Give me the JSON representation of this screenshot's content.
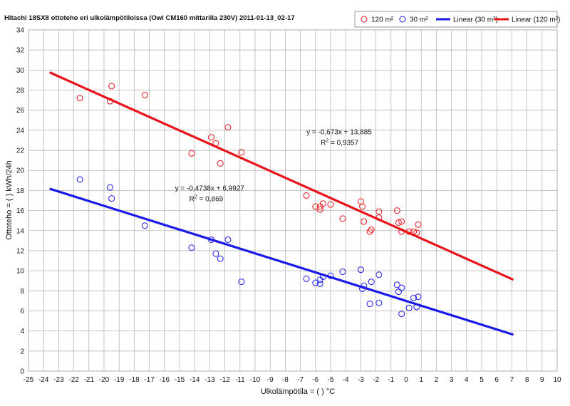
{
  "chart_data": {
    "type": "scatter",
    "title": "Hitachi 18SX8 ottoteho eri ulkolämpötiloissa (Owl CM160 mittarilla 230V) 2011-01-13_02-17",
    "xlabel": "Ulkolämpötila = ( ) °C",
    "ylabel": "Ottoteho = ( ) kWh/24h",
    "xlim": [
      -25,
      10
    ],
    "ylim": [
      0,
      34
    ],
    "x_ticks": [
      -25,
      -24,
      -23,
      -22,
      -21,
      -20,
      -19,
      -18,
      -17,
      -16,
      -15,
      -14,
      -13,
      -12,
      -11,
      -10,
      -9,
      -8,
      -7,
      -6,
      -5,
      -4,
      -3,
      -2,
      -1,
      0,
      1,
      2,
      3,
      4,
      5,
      6,
      7,
      8,
      9,
      10
    ],
    "y_ticks": [
      0,
      2,
      4,
      6,
      8,
      10,
      12,
      14,
      16,
      18,
      20,
      22,
      24,
      26,
      28,
      30,
      32,
      34
    ],
    "grid": true,
    "legend_position": "top-right",
    "series": [
      {
        "name": "120 m²",
        "marker": "circle-open",
        "color": "#e8141a",
        "points": [
          [
            -21.6,
            27.2
          ],
          [
            -19.6,
            26.9
          ],
          [
            -19.5,
            28.4
          ],
          [
            -17.3,
            27.5
          ],
          [
            -14.2,
            21.7
          ],
          [
            -12.9,
            23.3
          ],
          [
            -12.6,
            22.7
          ],
          [
            -12.3,
            20.7
          ],
          [
            -11.8,
            24.3
          ],
          [
            -10.9,
            21.8
          ],
          [
            -6.6,
            17.5
          ],
          [
            -6.0,
            16.4
          ],
          [
            -5.7,
            16.4
          ],
          [
            -5.7,
            16.1
          ],
          [
            -5.5,
            16.7
          ],
          [
            -5.0,
            16.6
          ],
          [
            -4.2,
            15.2
          ],
          [
            -3.0,
            16.9
          ],
          [
            -2.9,
            16.4
          ],
          [
            -2.8,
            14.9
          ],
          [
            -2.4,
            13.9
          ],
          [
            -2.3,
            14.1
          ],
          [
            -1.8,
            15.9
          ],
          [
            -1.8,
            15.3
          ],
          [
            -0.6,
            16.0
          ],
          [
            -0.5,
            14.8
          ],
          [
            -0.3,
            14.9
          ],
          [
            -0.3,
            13.9
          ],
          [
            0.2,
            13.9
          ],
          [
            0.5,
            13.9
          ],
          [
            0.7,
            13.8
          ],
          [
            0.8,
            14.6
          ]
        ]
      },
      {
        "name": "30 m²",
        "marker": "circle-open",
        "color": "#1a1ae8",
        "points": [
          [
            -21.6,
            19.1
          ],
          [
            -19.6,
            18.3
          ],
          [
            -19.5,
            17.2
          ],
          [
            -17.3,
            14.5
          ],
          [
            -14.2,
            12.3
          ],
          [
            -12.9,
            13.1
          ],
          [
            -12.6,
            11.7
          ],
          [
            -12.3,
            11.2
          ],
          [
            -11.8,
            13.1
          ],
          [
            -10.9,
            8.9
          ],
          [
            -6.6,
            9.2
          ],
          [
            -6.0,
            8.8
          ],
          [
            -5.7,
            8.7
          ],
          [
            -5.7,
            9.1
          ],
          [
            -5.5,
            9.4
          ],
          [
            -5.0,
            9.5
          ],
          [
            -4.2,
            9.9
          ],
          [
            -3.0,
            10.1
          ],
          [
            -2.9,
            8.2
          ],
          [
            -2.8,
            8.5
          ],
          [
            -2.4,
            6.7
          ],
          [
            -2.3,
            8.9
          ],
          [
            -1.8,
            9.6
          ],
          [
            -1.8,
            6.8
          ],
          [
            -0.6,
            8.6
          ],
          [
            -0.5,
            7.9
          ],
          [
            -0.3,
            8.3
          ],
          [
            -0.3,
            5.7
          ],
          [
            0.2,
            6.3
          ],
          [
            0.5,
            7.3
          ],
          [
            0.7,
            6.4
          ],
          [
            0.8,
            7.4
          ]
        ]
      },
      {
        "name": "Linear (30 m²)",
        "type": "line",
        "color": "#1a1ae8",
        "slope": -0.4738,
        "intercept": 6.9927,
        "x_range": [
          -23.6,
          7.1
        ]
      },
      {
        "name": "Linear (120 m²)",
        "type": "line",
        "color": "#e8141a",
        "slope": -0.673,
        "intercept": 13.885,
        "x_range": [
          -23.6,
          7.1
        ]
      }
    ],
    "annotations": [
      {
        "id": "eq-120",
        "line1": "y = -0,673x + 13,885",
        "r2_label": "R",
        "r2_sup": "2",
        "r2_value": " = 0,9357",
        "anchor_x": -6.6,
        "anchor_y": 23.6
      },
      {
        "id": "eq-30",
        "line1": "y = -0,4738x + 6,9927",
        "r2_label": "R",
        "r2_sup": "2",
        "r2_value": " = 0,869",
        "anchor_x": -15.3,
        "anchor_y": 18.0
      }
    ]
  }
}
